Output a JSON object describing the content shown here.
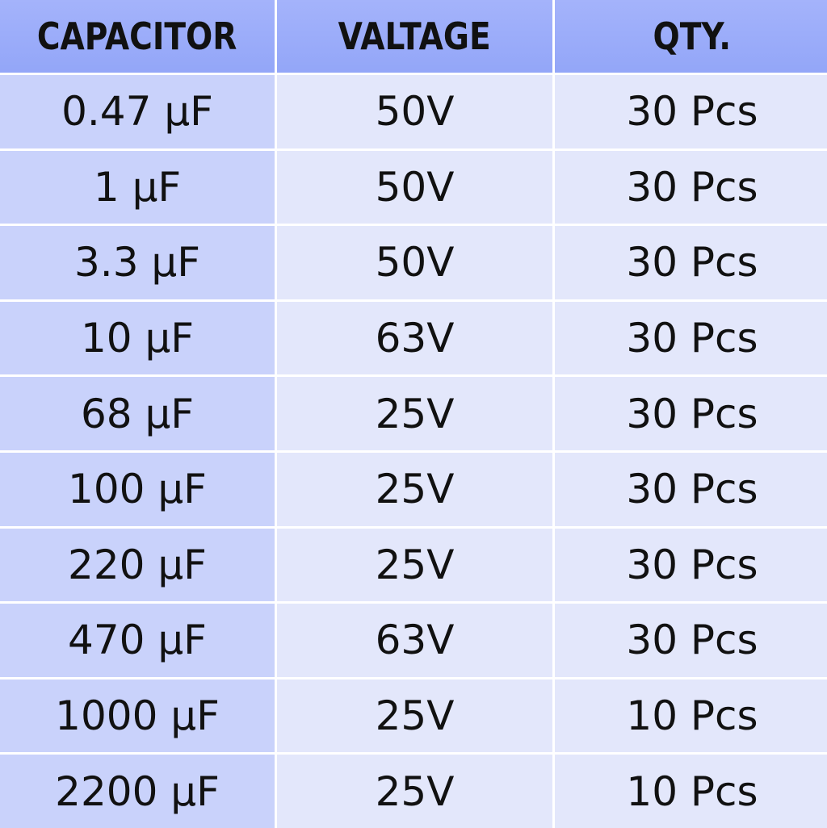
{
  "colors": {
    "header": "#9aacfa",
    "first_column": "#c9d2fb",
    "cells": "#e3e7fb"
  },
  "headers": [
    "CAPACITOR",
    "VALTAGE",
    "QTY."
  ],
  "rows": [
    [
      "0.47 µF",
      "50V",
      "30 Pcs"
    ],
    [
      "1 µF",
      "50V",
      "30 Pcs"
    ],
    [
      "3.3 µF",
      "50V",
      "30 Pcs"
    ],
    [
      "10 µF",
      "63V",
      "30 Pcs"
    ],
    [
      "68 µF",
      "25V",
      "30 Pcs"
    ],
    [
      "100 µF",
      "25V",
      "30 Pcs"
    ],
    [
      "220 µF",
      "25V",
      "30 Pcs"
    ],
    [
      "470 µF",
      "63V",
      "30 Pcs"
    ],
    [
      "1000 µF",
      "25V",
      "10 Pcs"
    ],
    [
      "2200 µF",
      "25V",
      "10 Pcs"
    ]
  ]
}
